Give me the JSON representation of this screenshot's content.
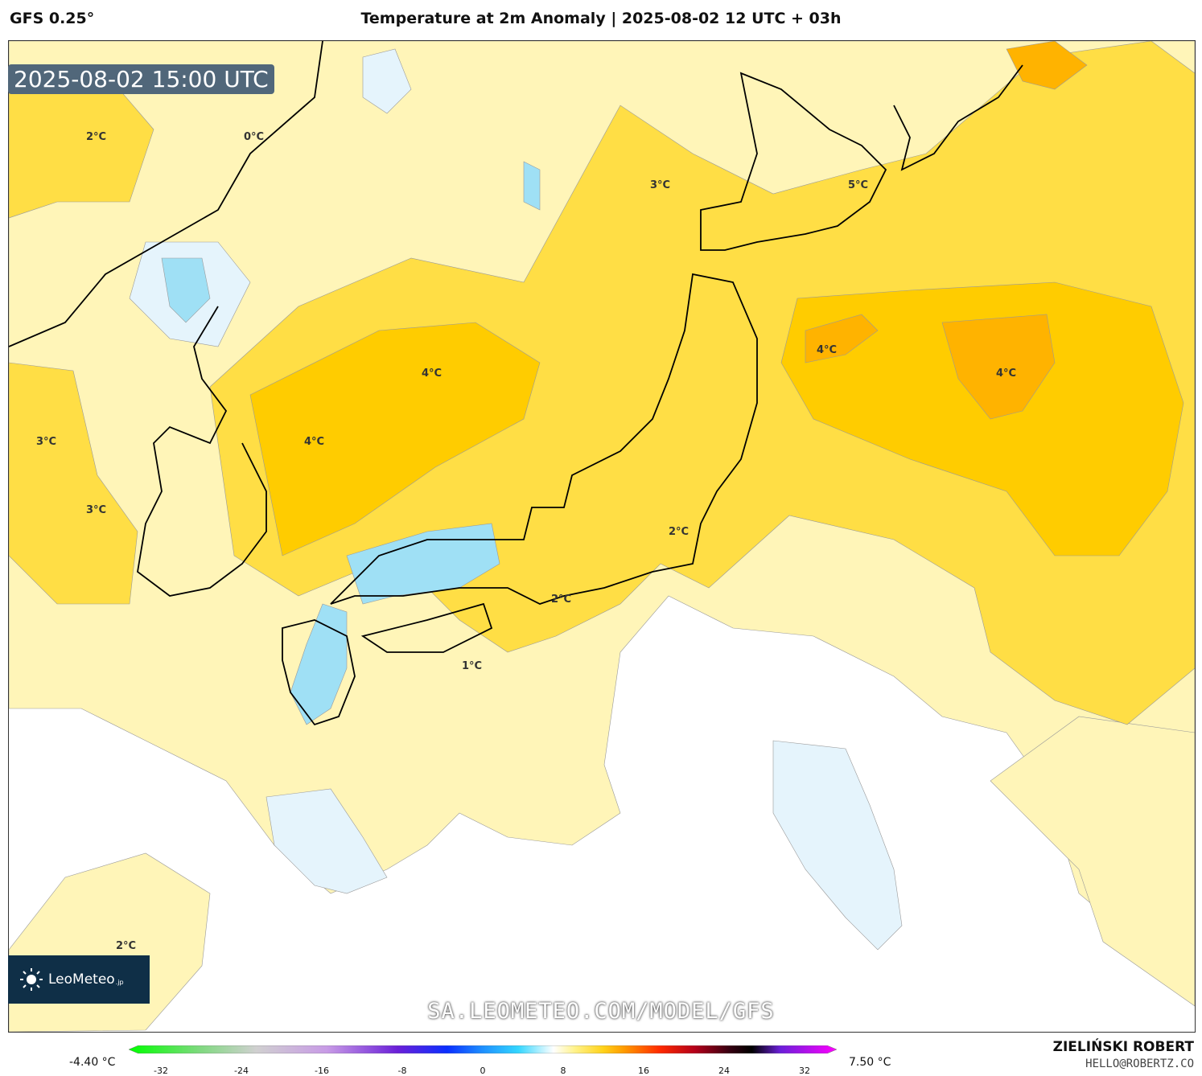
{
  "header": {
    "model": "GFS 0.25°",
    "title": "Temperature at 2m Anomaly | 2025-08-02 12 UTC + 03h"
  },
  "map": {
    "timestamp": "2025-08-02 15:00 UTC",
    "contour_labels": [
      "2°C",
      "0°C",
      "3°C",
      "5°C",
      "4°C",
      "4°C",
      "4°C",
      "4°C",
      "3°C",
      "3°C",
      "2°C",
      "2°C",
      "1°C",
      "2°C"
    ],
    "website": "SA.LEOMETEO.COM/MODEL/GFS",
    "logo": {
      "name": "LeoMeteo",
      "suffix": ".jp"
    }
  },
  "colorbar": {
    "min": "-4.40 °C",
    "max": "7.50 °C",
    "ticks": [
      "-32",
      "-24",
      "-16",
      "-8",
      "0",
      "8",
      "16",
      "24",
      "32"
    ]
  },
  "footer": {
    "author": "ZIELIŃSKI ROBERT",
    "email": "HELLO@ROBERTZ.CO"
  },
  "colors": {
    "warm_light": "#fff5b8",
    "warm_mid": "#ffde45",
    "warm_strong": "#ffcc00",
    "warm_hot": "#ffb300",
    "cool_light": "#e5f4fc",
    "cool_mid": "#9fe0f5",
    "land_outline": "#000000",
    "logo_bg": "#0f2f47"
  }
}
